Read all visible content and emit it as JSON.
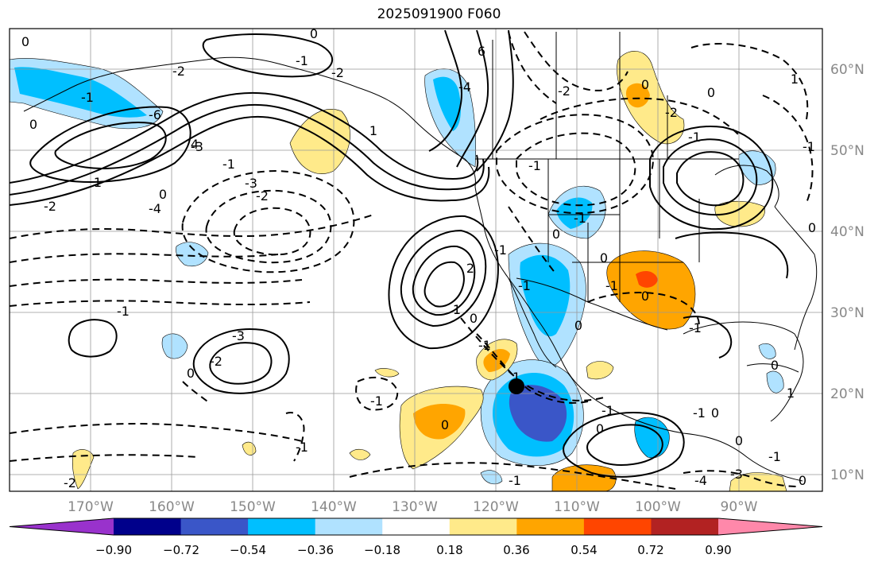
{
  "title": "2025091900 F060",
  "lat_labels": [
    "60°N",
    "50°N",
    "40°N",
    "30°N",
    "20°N",
    "10°N"
  ],
  "lon_labels": [
    "170°W",
    "160°W",
    "150°W",
    "140°W",
    "130°W",
    "120°W",
    "110°W",
    "100°W",
    "90°W"
  ],
  "colorbar": {
    "ticks": [
      "−0.90",
      "−0.72",
      "−0.54",
      "−0.36",
      "−0.18",
      "0.18",
      "0.36",
      "0.54",
      "0.72",
      "0.90"
    ],
    "colors": [
      "#9932cc",
      "#00008b",
      "#3a56c8",
      "#00bfff",
      "#b0e2ff",
      "#ffffff",
      "#ffea8a",
      "#ffa500",
      "#ff4500",
      "#b22222",
      "#ff88aa"
    ]
  },
  "contour_labels": [
    "0",
    "-1",
    "0",
    "-2",
    "-3",
    "6",
    "-4",
    "0",
    "-1",
    "-2",
    "1",
    "-6",
    "4",
    "-3",
    "-2",
    "-1",
    "0",
    "-4",
    "-2",
    "1",
    "-1",
    "-2",
    "-3",
    "0",
    "-1",
    "-1",
    "-2",
    "0",
    "-1",
    "-4",
    "-3",
    "-2",
    "-1",
    "0",
    "-2",
    "-1",
    "0",
    "1",
    "-1",
    "0",
    "-1",
    "2",
    "1",
    "0",
    "-1",
    "0",
    "-1",
    "0",
    "-1",
    "0",
    "-1",
    "0",
    "-1",
    "0",
    "1",
    "0",
    "-1",
    "0",
    "1",
    "0",
    "-1",
    "0",
    "-1"
  ],
  "marker": "storm-center"
}
